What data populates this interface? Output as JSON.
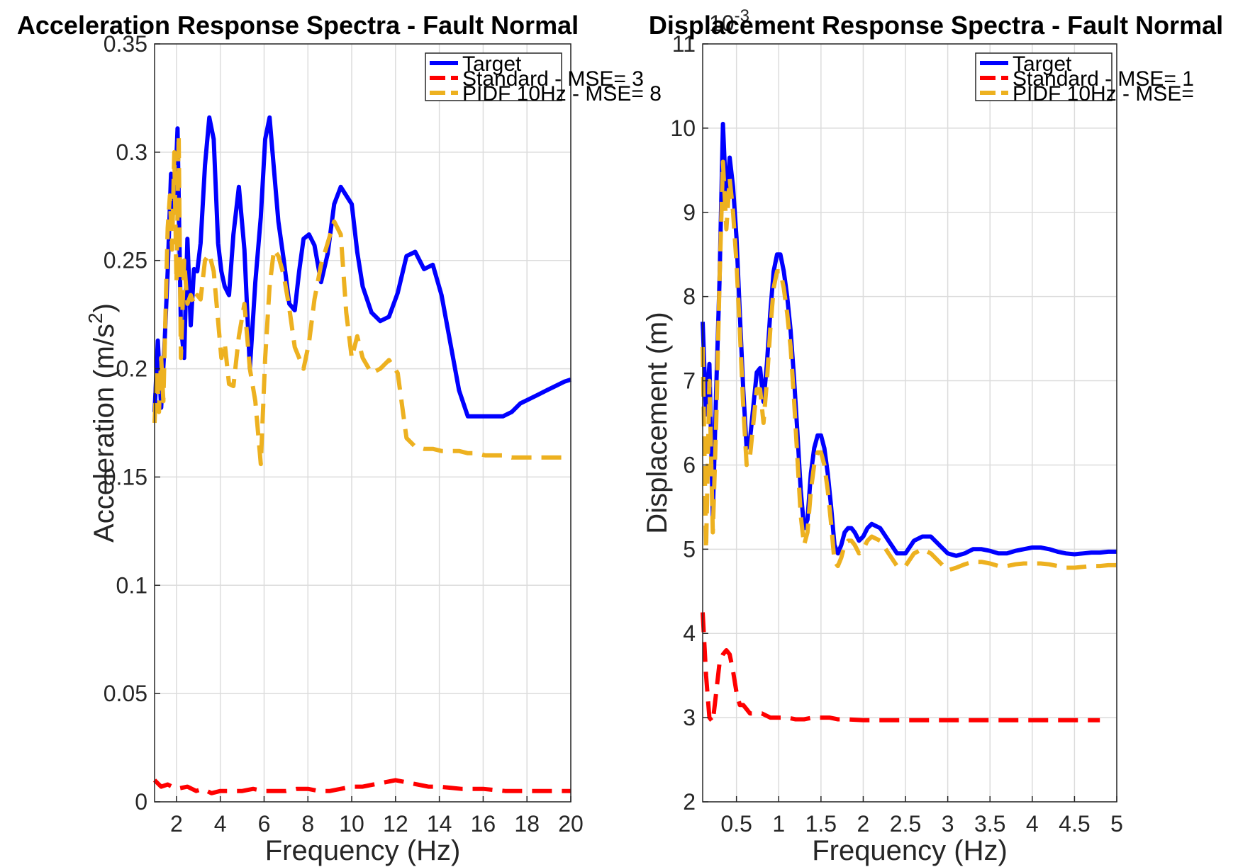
{
  "colors": {
    "target": "#0000ff",
    "standard": "#ff0000",
    "pidf": "#edb120",
    "grid": "#dcdcdc",
    "axis": "#262626"
  },
  "chart_data": [
    {
      "type": "line",
      "title": "Acceleration Response Spectra - Fault Normal",
      "xlabel": "Frequency (Hz)",
      "ylabel": "Acceleration (m/s²)",
      "xlim": [
        1,
        20
      ],
      "ylim": [
        0,
        0.35
      ],
      "xticks": [
        2,
        4,
        6,
        8,
        10,
        12,
        14,
        16,
        18,
        20
      ],
      "xtick_labels": [
        "2",
        "4",
        "6",
        "8",
        "10",
        "12",
        "14",
        "16",
        "18",
        "20"
      ],
      "yticks": [
        0,
        0.05,
        0.1,
        0.15,
        0.2,
        0.25,
        0.3,
        0.35
      ],
      "ytick_labels": [
        "0",
        "0.05",
        "0.1",
        "0.15",
        "0.2",
        "0.25",
        "0.3",
        "0.35"
      ],
      "grid": true,
      "legend_position": "top-right",
      "series": [
        {
          "name": "Target",
          "style": "solid",
          "x": [
            1,
            1.15,
            1.3,
            1.45,
            1.6,
            1.75,
            1.9,
            2.05,
            2.2,
            2.35,
            2.5,
            2.65,
            2.8,
            2.95,
            3.1,
            3.3,
            3.5,
            3.7,
            3.9,
            4.05,
            4.2,
            4.4,
            4.6,
            4.85,
            5.1,
            5.35,
            5.6,
            5.85,
            6.05,
            6.25,
            6.45,
            6.65,
            6.9,
            7.15,
            7.4,
            7.6,
            7.8,
            8.05,
            8.3,
            8.6,
            8.9,
            9.2,
            9.5,
            9.75,
            10.0,
            10.25,
            10.5,
            10.9,
            11.3,
            11.7,
            12.1,
            12.5,
            12.9,
            13.3,
            13.7,
            14.1,
            14.5,
            14.9,
            15.3,
            15.7,
            16.1,
            16.5,
            16.9,
            17.3,
            17.7,
            18.1,
            18.5,
            18.9,
            19.3,
            19.7,
            20.0
          ],
          "values": [
            0.18,
            0.213,
            0.182,
            0.21,
            0.245,
            0.29,
            0.272,
            0.311,
            0.22,
            0.205,
            0.26,
            0.22,
            0.246,
            0.245,
            0.258,
            0.294,
            0.316,
            0.306,
            0.258,
            0.245,
            0.238,
            0.234,
            0.262,
            0.284,
            0.255,
            0.2,
            0.24,
            0.27,
            0.306,
            0.316,
            0.292,
            0.268,
            0.25,
            0.23,
            0.227,
            0.245,
            0.26,
            0.262,
            0.257,
            0.24,
            0.253,
            0.276,
            0.284,
            0.28,
            0.276,
            0.254,
            0.238,
            0.226,
            0.222,
            0.224,
            0.235,
            0.252,
            0.254,
            0.246,
            0.248,
            0.234,
            0.212,
            0.19,
            0.178,
            0.178,
            0.178,
            0.178,
            0.178,
            0.18,
            0.184,
            0.186,
            0.188,
            0.19,
            0.192,
            0.194,
            0.195
          ]
        },
        {
          "name": "Standard - MSE= 3",
          "style": "dashed",
          "x": [
            1,
            1.3,
            1.6,
            2.0,
            2.5,
            2.9,
            3.2,
            3.6,
            4.0,
            4.5,
            5.0,
            5.5,
            6.0,
            6.5,
            7.0,
            7.5,
            8.0,
            8.5,
            9.0,
            9.5,
            10.0,
            10.5,
            11.0,
            11.5,
            12.0,
            12.5,
            13.0,
            13.5,
            14.0,
            15.0,
            16.0,
            17.0,
            18.0,
            19.0,
            20.0
          ],
          "values": [
            0.01,
            0.007,
            0.008,
            0.006,
            0.007,
            0.005,
            0.006,
            0.004,
            0.005,
            0.005,
            0.005,
            0.006,
            0.005,
            0.005,
            0.005,
            0.006,
            0.006,
            0.005,
            0.005,
            0.006,
            0.007,
            0.007,
            0.008,
            0.009,
            0.01,
            0.009,
            0.008,
            0.007,
            0.007,
            0.006,
            0.006,
            0.005,
            0.005,
            0.005,
            0.005
          ]
        },
        {
          "name": "PIDF 10Hz - MSE= 8",
          "style": "dashed",
          "x": [
            1,
            1.1,
            1.2,
            1.3,
            1.4,
            1.5,
            1.6,
            1.7,
            1.8,
            1.9,
            2.0,
            2.1,
            2.2,
            2.35,
            2.5,
            2.65,
            2.8,
            2.95,
            3.1,
            3.3,
            3.5,
            3.7,
            3.9,
            4.05,
            4.2,
            4.4,
            4.6,
            4.85,
            5.1,
            5.35,
            5.6,
            5.85,
            6.05,
            6.25,
            6.45,
            6.65,
            6.9,
            7.15,
            7.4,
            7.6,
            7.8,
            8.05,
            8.3,
            8.6,
            8.9,
            9.2,
            9.5,
            9.75,
            10.0,
            10.25,
            10.5,
            10.9,
            11.3,
            11.7,
            12.1,
            12.5,
            12.9,
            13.3,
            13.7,
            14.1,
            14.5,
            14.9,
            15.3,
            15.7,
            16.1,
            16.5,
            16.9,
            17.3,
            17.7,
            18.1,
            18.5,
            18.9,
            19.3,
            19.7,
            20.0
          ],
          "values": [
            0.175,
            0.2,
            0.18,
            0.205,
            0.185,
            0.225,
            0.265,
            0.28,
            0.255,
            0.3,
            0.24,
            0.308,
            0.205,
            0.25,
            0.23,
            0.234,
            0.23,
            0.234,
            0.232,
            0.25,
            0.253,
            0.245,
            0.222,
            0.205,
            0.212,
            0.193,
            0.192,
            0.215,
            0.23,
            0.2,
            0.185,
            0.156,
            0.205,
            0.238,
            0.255,
            0.252,
            0.243,
            0.228,
            0.21,
            0.205,
            0.2,
            0.212,
            0.232,
            0.248,
            0.258,
            0.268,
            0.262,
            0.226,
            0.205,
            0.215,
            0.205,
            0.198,
            0.2,
            0.204,
            0.198,
            0.168,
            0.164,
            0.163,
            0.163,
            0.162,
            0.162,
            0.162,
            0.161,
            0.161,
            0.16,
            0.16,
            0.16,
            0.159,
            0.159,
            0.159,
            0.159,
            0.159,
            0.159,
            0.159,
            0.159
          ]
        }
      ]
    },
    {
      "type": "line",
      "title": "Displacement Response Spectra - Fault Normal",
      "xlabel": "Frequency (Hz)",
      "ylabel": "Displacement (m)",
      "exponent_label": "10",
      "exponent_power": "-3",
      "xlim": [
        0.1,
        5
      ],
      "ylim": [
        2,
        11
      ],
      "xticks": [
        0.5,
        1,
        1.5,
        2,
        2.5,
        3,
        3.5,
        4,
        4.5,
        5
      ],
      "xtick_labels": [
        "0.5",
        "1",
        "1.5",
        "2",
        "2.5",
        "3",
        "3.5",
        "4",
        "4.5",
        "5"
      ],
      "yticks": [
        2,
        3,
        4,
        5,
        6,
        7,
        8,
        9,
        10,
        11
      ],
      "ytick_labels": [
        "2",
        "3",
        "4",
        "5",
        "6",
        "7",
        "8",
        "9",
        "10",
        "11"
      ],
      "grid": true,
      "legend_position": "top-right",
      "series": [
        {
          "name": "Target",
          "style": "solid",
          "x": [
            0.1,
            0.14,
            0.18,
            0.22,
            0.26,
            0.3,
            0.34,
            0.38,
            0.42,
            0.46,
            0.5,
            0.54,
            0.58,
            0.62,
            0.66,
            0.7,
            0.74,
            0.78,
            0.82,
            0.86,
            0.9,
            0.94,
            0.98,
            1.02,
            1.06,
            1.1,
            1.14,
            1.18,
            1.22,
            1.26,
            1.3,
            1.34,
            1.38,
            1.42,
            1.46,
            1.5,
            1.54,
            1.58,
            1.62,
            1.66,
            1.7,
            1.74,
            1.78,
            1.82,
            1.86,
            1.9,
            1.95,
            2.0,
            2.05,
            2.1,
            2.2,
            2.3,
            2.4,
            2.5,
            2.6,
            2.7,
            2.8,
            2.9,
            3.0,
            3.1,
            3.2,
            3.3,
            3.4,
            3.5,
            3.6,
            3.7,
            3.8,
            3.9,
            4.0,
            4.1,
            4.2,
            4.3,
            4.4,
            4.5,
            4.6,
            4.7,
            4.8,
            4.9,
            5.0
          ],
          "values": [
            7.7,
            6.6,
            7.2,
            5.4,
            6.9,
            8.2,
            10.05,
            9.1,
            9.65,
            9.3,
            8.7,
            7.8,
            6.9,
            6.2,
            6.3,
            6.7,
            7.1,
            7.15,
            6.75,
            7.2,
            7.8,
            8.3,
            8.5,
            8.5,
            8.3,
            8.0,
            7.6,
            7.05,
            6.4,
            5.7,
            5.25,
            5.35,
            5.9,
            6.2,
            6.35,
            6.35,
            6.2,
            5.9,
            5.5,
            5.05,
            4.95,
            5.05,
            5.2,
            5.25,
            5.25,
            5.2,
            5.1,
            5.15,
            5.25,
            5.3,
            5.25,
            5.1,
            4.95,
            4.95,
            5.1,
            5.15,
            5.15,
            5.05,
            4.95,
            4.92,
            4.95,
            5.0,
            5.0,
            4.98,
            4.95,
            4.95,
            4.98,
            5.0,
            5.02,
            5.02,
            5.0,
            4.97,
            4.95,
            4.94,
            4.95,
            4.96,
            4.96,
            4.97,
            4.97
          ]
        },
        {
          "name": "Standard - MSE= 1",
          "style": "dashed",
          "x": [
            0.1,
            0.14,
            0.18,
            0.22,
            0.26,
            0.3,
            0.34,
            0.38,
            0.42,
            0.46,
            0.5,
            0.54,
            0.58,
            0.62,
            0.66,
            0.7,
            0.8,
            0.9,
            1.0,
            1.1,
            1.2,
            1.3,
            1.4,
            1.5,
            1.6,
            1.7,
            1.8,
            2.0,
            2.2,
            2.5,
            3.0,
            3.5,
            4.0,
            4.5,
            4.8
          ],
          "values": [
            4.25,
            3.5,
            3.0,
            2.95,
            3.3,
            3.65,
            3.75,
            3.8,
            3.75,
            3.55,
            3.3,
            3.15,
            3.15,
            3.1,
            3.05,
            3.05,
            3.05,
            3.0,
            3.0,
            3.0,
            2.98,
            2.98,
            3.0,
            3.0,
            3.0,
            2.98,
            2.98,
            2.97,
            2.97,
            2.97,
            2.97,
            2.97,
            2.97,
            2.97,
            2.97
          ]
        },
        {
          "name": "PIDF 10Hz - MSE=",
          "style": "dashed",
          "x": [
            0.1,
            0.14,
            0.18,
            0.22,
            0.26,
            0.3,
            0.34,
            0.38,
            0.42,
            0.46,
            0.5,
            0.54,
            0.58,
            0.62,
            0.66,
            0.7,
            0.74,
            0.78,
            0.82,
            0.86,
            0.9,
            0.94,
            0.98,
            1.02,
            1.06,
            1.1,
            1.14,
            1.18,
            1.22,
            1.26,
            1.3,
            1.34,
            1.38,
            1.42,
            1.46,
            1.5,
            1.54,
            1.58,
            1.62,
            1.66,
            1.7,
            1.74,
            1.78,
            1.82,
            1.86,
            1.9,
            1.95,
            2.0,
            2.05,
            2.1,
            2.2,
            2.3,
            2.4,
            2.5,
            2.6,
            2.7,
            2.8,
            2.9,
            3.0,
            3.1,
            3.2,
            3.3,
            3.4,
            3.5,
            3.6,
            3.7,
            3.8,
            3.9,
            4.0,
            4.1,
            4.2,
            4.3,
            4.4,
            4.5,
            4.6,
            4.7,
            4.8,
            4.9,
            5.0
          ],
          "values": [
            7.4,
            5.0,
            7.0,
            5.2,
            6.5,
            8.2,
            9.6,
            8.8,
            9.4,
            9.0,
            8.4,
            7.6,
            6.7,
            6.0,
            6.1,
            6.5,
            6.9,
            6.9,
            6.5,
            7.0,
            7.6,
            8.1,
            8.3,
            8.3,
            8.1,
            7.8,
            7.4,
            6.8,
            6.1,
            5.4,
            5.05,
            5.2,
            5.7,
            6.0,
            6.15,
            6.15,
            6.0,
            5.7,
            5.3,
            4.85,
            4.8,
            4.9,
            5.05,
            5.1,
            5.1,
            5.05,
            4.95,
            5.0,
            5.1,
            5.15,
            5.1,
            4.95,
            4.8,
            4.8,
            4.95,
            5.0,
            4.95,
            4.85,
            4.75,
            4.78,
            4.82,
            4.85,
            4.85,
            4.83,
            4.8,
            4.8,
            4.82,
            4.83,
            4.83,
            4.83,
            4.82,
            4.8,
            4.78,
            4.78,
            4.79,
            4.8,
            4.8,
            4.81,
            4.81
          ]
        }
      ]
    }
  ]
}
